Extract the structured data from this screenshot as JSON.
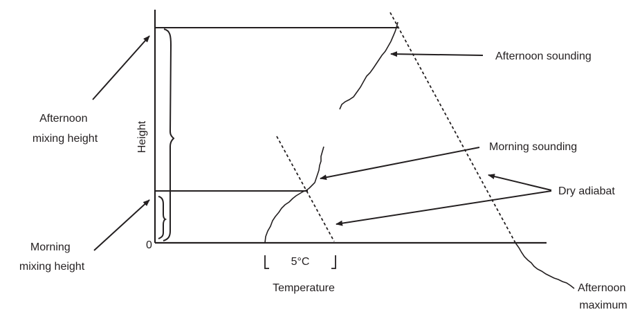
{
  "axes": {
    "origin_label": "0",
    "y_label": "Height",
    "x_label": "Temperature",
    "interval_label": "5°C"
  },
  "labels": {
    "afternoon_mixing_height": [
      "Afternoon",
      "mixing height"
    ],
    "morning_mixing_height": [
      "Morning",
      "mixing height"
    ],
    "afternoon_sounding": "Afternoon sounding",
    "morning_sounding": "Morning sounding",
    "dry_adiabat": "Dry adiabat",
    "afternoon_maximum": [
      "Afternoon",
      "maximum"
    ]
  }
}
